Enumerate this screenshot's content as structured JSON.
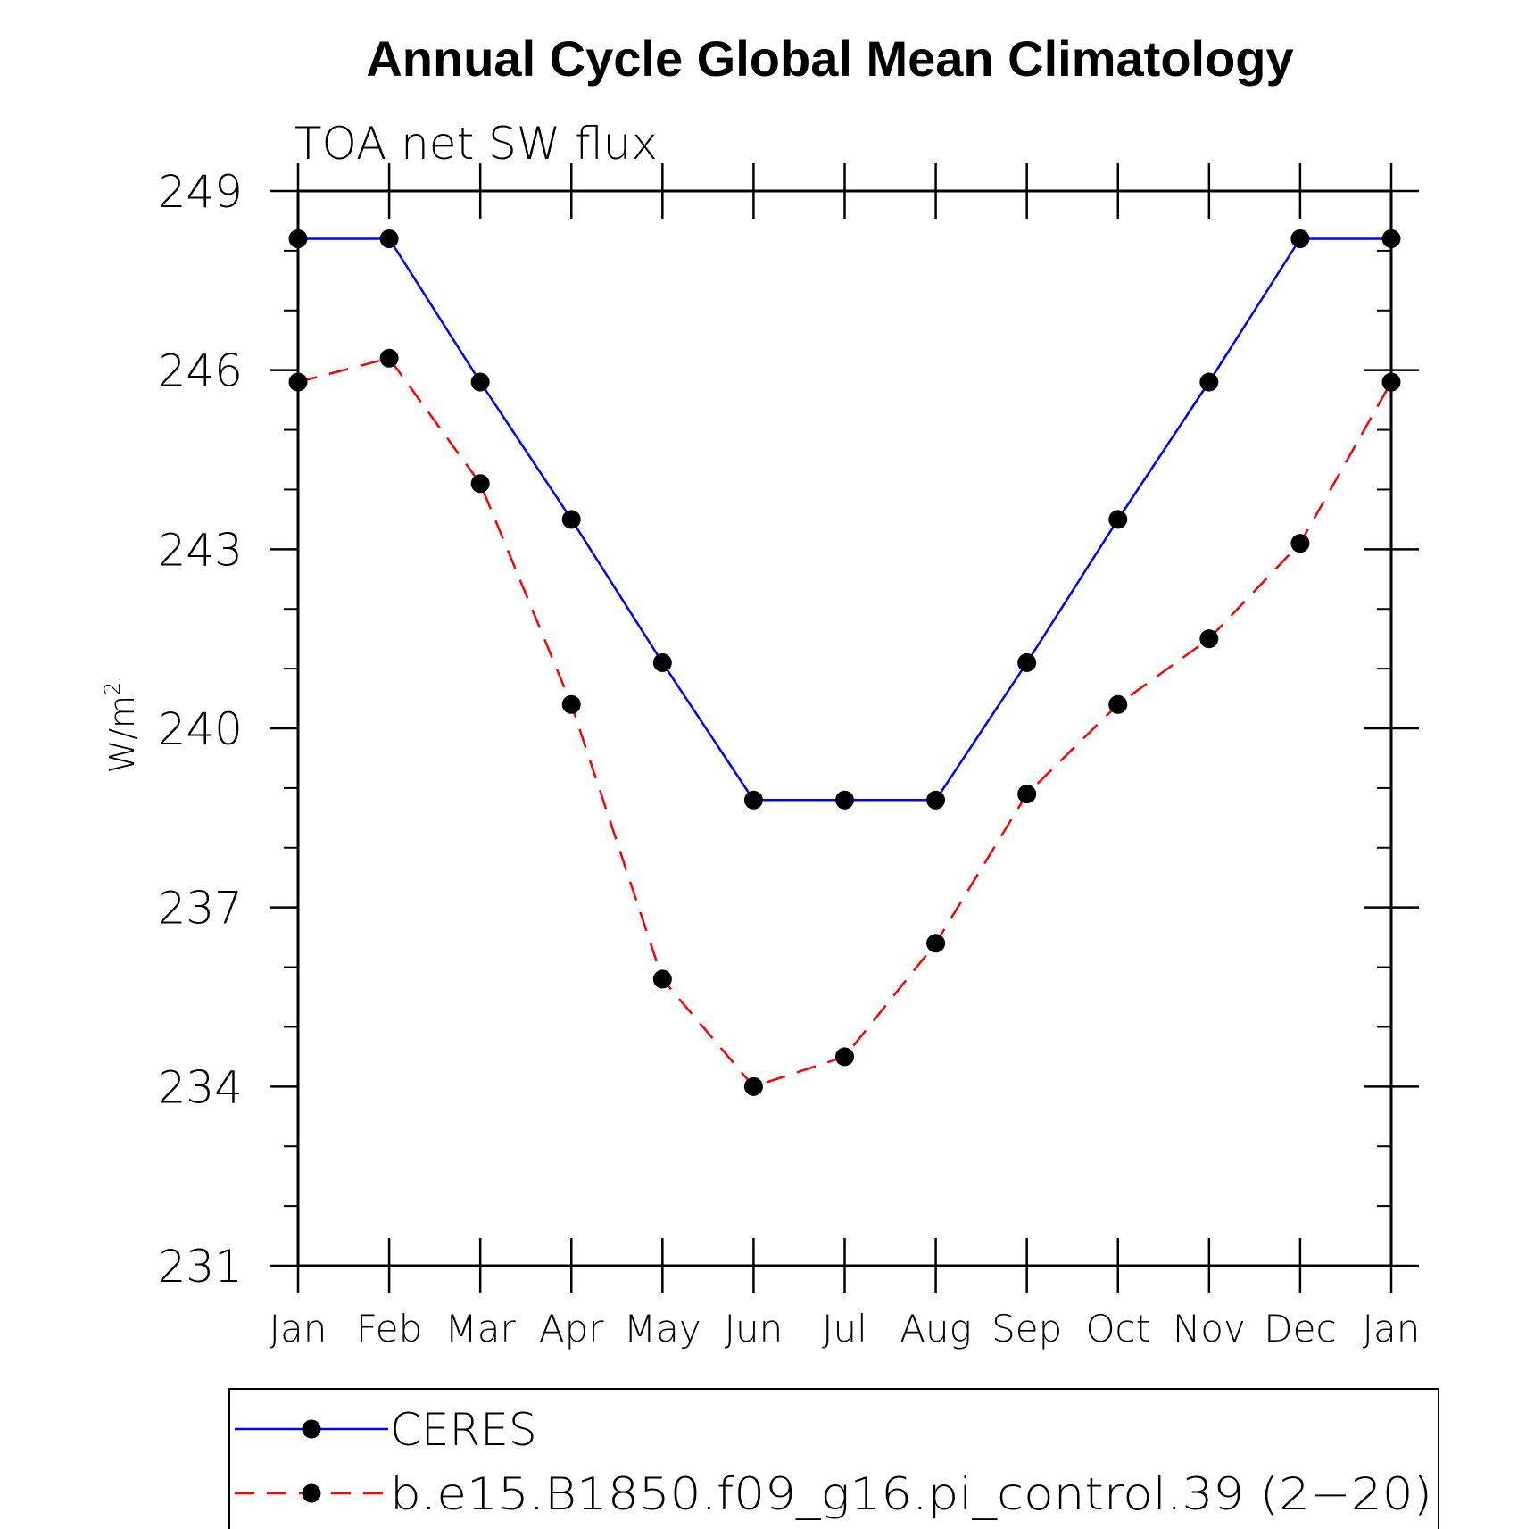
{
  "chart_data": {
    "type": "line",
    "title": "Annual Cycle Global Mean Climatology",
    "subtitle": "TOA net SW flux",
    "xlabel": "",
    "ylabel": "W/m",
    "ylabel_superscript": "2",
    "categories": [
      "Jan",
      "Feb",
      "Mar",
      "Apr",
      "May",
      "Jun",
      "Jul",
      "Aug",
      "Sep",
      "Oct",
      "Nov",
      "Dec",
      "Jan"
    ],
    "ylim": [
      231,
      249
    ],
    "yticks": [
      "249",
      "246",
      "243",
      "240",
      "237",
      "234",
      "231"
    ],
    "grid": false,
    "legend_position": "bottom",
    "series": [
      {
        "name": "CERES",
        "color": "#0000ff",
        "dash": "solid",
        "marker": "filled-circle",
        "values": [
          248.2,
          248.2,
          245.8,
          243.5,
          241.1,
          238.8,
          238.8,
          238.8,
          241.1,
          243.5,
          245.8,
          248.2,
          248.2
        ]
      },
      {
        "name": "b.e15.B1850.f09_g16.pi_control.39 (2−20)",
        "color": "#ff0000",
        "dash": "dashed",
        "marker": "filled-circle",
        "values": [
          245.8,
          246.2,
          244.1,
          240.4,
          235.8,
          234.0,
          234.5,
          236.4,
          238.9,
          240.4,
          241.5,
          243.1,
          245.8
        ]
      }
    ]
  }
}
